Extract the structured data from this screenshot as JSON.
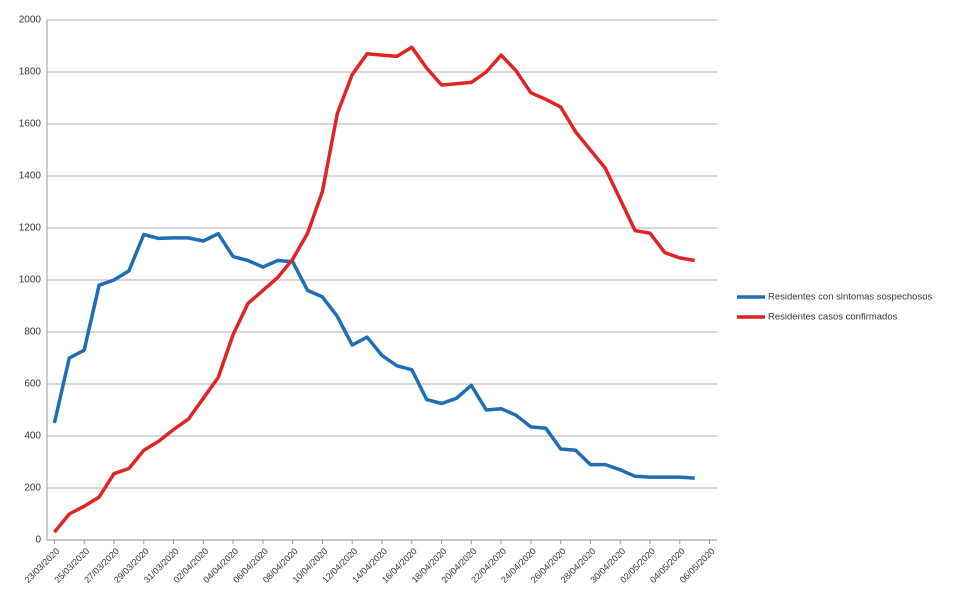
{
  "chart_data": {
    "type": "line",
    "categories": [
      "23/03/2020",
      null,
      "25/03/2020",
      null,
      "27/03/2020",
      null,
      "29/03/2020",
      null,
      "31/03/2020",
      null,
      "02/04/2020",
      null,
      "04/04/2020",
      null,
      "06/04/2020",
      null,
      "08/04/2020",
      null,
      "10/04/2020",
      null,
      "12/04/2020",
      null,
      "14/04/2020",
      null,
      "16/04/2020",
      null,
      "18/04/2020",
      null,
      "20/04/2020",
      null,
      "22/04/2020",
      null,
      "24/04/2020",
      null,
      "26/04/2020",
      null,
      "28/04/2020",
      null,
      "30/04/2020",
      null,
      "02/05/2020",
      null,
      "04/05/2020",
      null,
      "06/05/2020"
    ],
    "series": [
      {
        "name": "Residentes con sintomas sospechosos",
        "color": "#1f6db3",
        "values": [
          450,
          700,
          730,
          980,
          1000,
          1035,
          1175,
          1160,
          1162,
          1162,
          1150,
          1178,
          1090,
          1075,
          1050,
          1075,
          1070,
          960,
          935,
          860,
          750,
          780,
          710,
          670,
          655,
          540,
          525,
          545,
          595,
          500,
          505,
          480,
          435,
          430,
          350,
          345,
          290,
          290,
          270,
          245,
          242,
          242,
          242,
          238,
          null
        ]
      },
      {
        "name": "Residentes casos confirmados",
        "color": "#e02424",
        "values": [
          30,
          100,
          130,
          165,
          255,
          275,
          345,
          380,
          425,
          465,
          545,
          625,
          790,
          910,
          960,
          1010,
          1080,
          1180,
          1340,
          1640,
          1790,
          1870,
          1865,
          1860,
          1895,
          1815,
          1750,
          1755,
          1760,
          1800,
          1865,
          1805,
          1720,
          1695,
          1665,
          1570,
          1500,
          1430,
          1310,
          1190,
          1180,
          1105,
          1085,
          1075,
          null
        ]
      }
    ],
    "ylim": [
      0,
      2000
    ],
    "yticks": [
      0,
      200,
      400,
      600,
      800,
      1000,
      1200,
      1400,
      1600,
      1800,
      2000
    ],
    "grid": true,
    "legend": "right"
  }
}
